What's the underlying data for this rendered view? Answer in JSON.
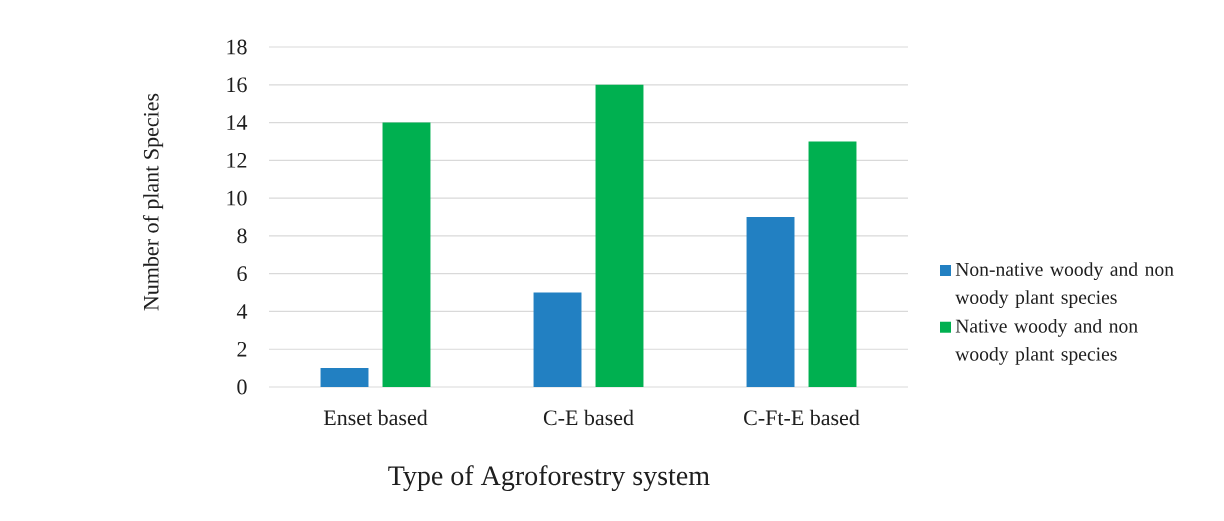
{
  "chart_data": {
    "type": "bar",
    "xlabel": "Type of Agroforestry system",
    "ylabel": "Number of plant Species",
    "categories": [
      "Enset based",
      "C-E based",
      "C-Ft-E based"
    ],
    "series": [
      {
        "name": "Non-native woody and non woody plant species",
        "color": "#2280c2",
        "values": [
          1,
          5,
          9
        ]
      },
      {
        "name": "Native woody and non woody plant species",
        "color": "#00b050",
        "values": [
          14,
          16,
          13
        ]
      }
    ],
    "ylim": [
      0,
      18
    ],
    "yticks": [
      0,
      2,
      4,
      6,
      8,
      10,
      12,
      14,
      16,
      18
    ],
    "grid": "y",
    "legend": "right"
  }
}
